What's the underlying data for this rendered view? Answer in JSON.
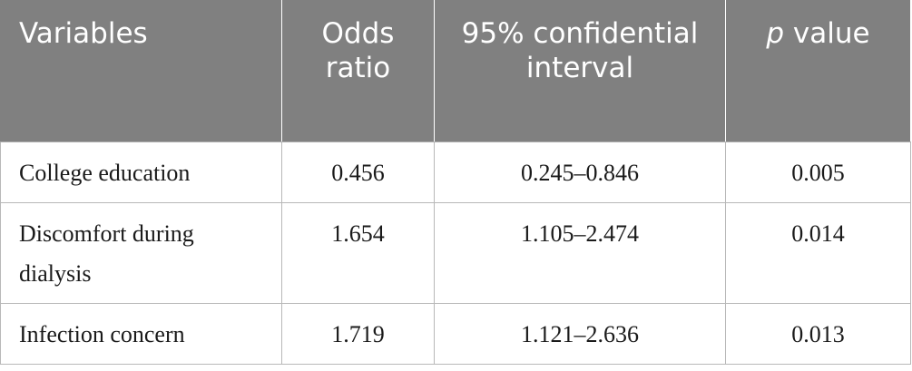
{
  "table": {
    "headers": {
      "variables": "Variables",
      "odds_ratio": "Odds ratio",
      "ci": "95% confidential interval",
      "p_italic": "p",
      "p_rest": " value"
    },
    "rows": [
      {
        "variable": "College education",
        "odds_ratio": "0.456",
        "ci": "0.245–0.846",
        "p": "0.005"
      },
      {
        "variable": "Discomfort during dialysis",
        "odds_ratio": "1.654",
        "ci": "1.105–2.474",
        "p": "0.014"
      },
      {
        "variable": "Infection concern",
        "odds_ratio": "1.719",
        "ci": "1.121–2.636",
        "p": "0.013"
      }
    ]
  }
}
